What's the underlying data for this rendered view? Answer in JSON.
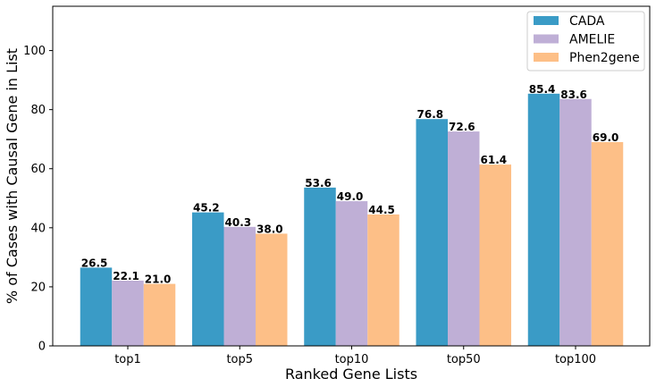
{
  "chart_data": {
    "type": "bar",
    "categories": [
      "top1",
      "top5",
      "top10",
      "top50",
      "top100"
    ],
    "series": [
      {
        "name": "CADA",
        "color": "#3a9bc6",
        "values": [
          26.5,
          45.2,
          53.6,
          76.8,
          85.4
        ]
      },
      {
        "name": "AMELIE",
        "color": "#bfafd6",
        "values": [
          22.1,
          40.3,
          49.0,
          72.6,
          83.6
        ]
      },
      {
        "name": "Phen2gene",
        "color": "#fdbf87",
        "values": [
          21.0,
          38.0,
          44.5,
          61.4,
          69.0
        ]
      }
    ],
    "xlabel": "Ranked Gene Lists",
    "ylabel": "% of Cases with Causal Gene in List",
    "ylim": [
      0,
      115
    ],
    "yticks": [
      0,
      20,
      40,
      60,
      80,
      100
    ],
    "grid": false,
    "legend_position": "top-right"
  }
}
